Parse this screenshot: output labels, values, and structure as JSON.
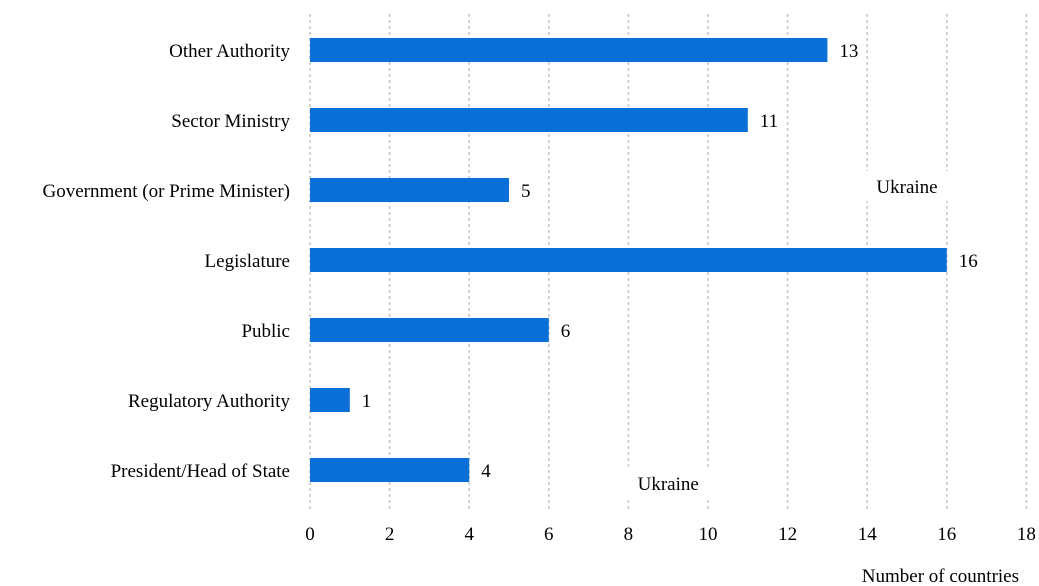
{
  "chart_data": {
    "type": "bar",
    "orientation": "horizontal",
    "categories": [
      "Other Authority",
      "Sector Ministry",
      "Government (or Prime Minister)",
      "Legislature",
      "Public",
      "Regulatory Authority",
      "President/Head of State"
    ],
    "values": [
      13,
      11,
      5,
      16,
      6,
      1,
      4
    ],
    "value_labels": [
      "13",
      "11",
      "5",
      "16",
      "6",
      "1",
      "4"
    ],
    "xlabel": "Number of countries",
    "xlim": [
      0,
      18
    ],
    "xticks": [
      0,
      2,
      4,
      6,
      8,
      10,
      12,
      14,
      16,
      18
    ],
    "xtick_labels": [
      "0",
      "2",
      "4",
      "6",
      "8",
      "10",
      "12",
      "14",
      "16",
      "18"
    ],
    "grid": "vertical dashed",
    "bar_color": "#0a6fd6",
    "annotations": [
      {
        "text": "Ukraine",
        "x": 15,
        "category": "Government (or Prime Minister)"
      },
      {
        "text": "Ukraine",
        "x": 9,
        "category": "President/Head of State"
      }
    ]
  }
}
